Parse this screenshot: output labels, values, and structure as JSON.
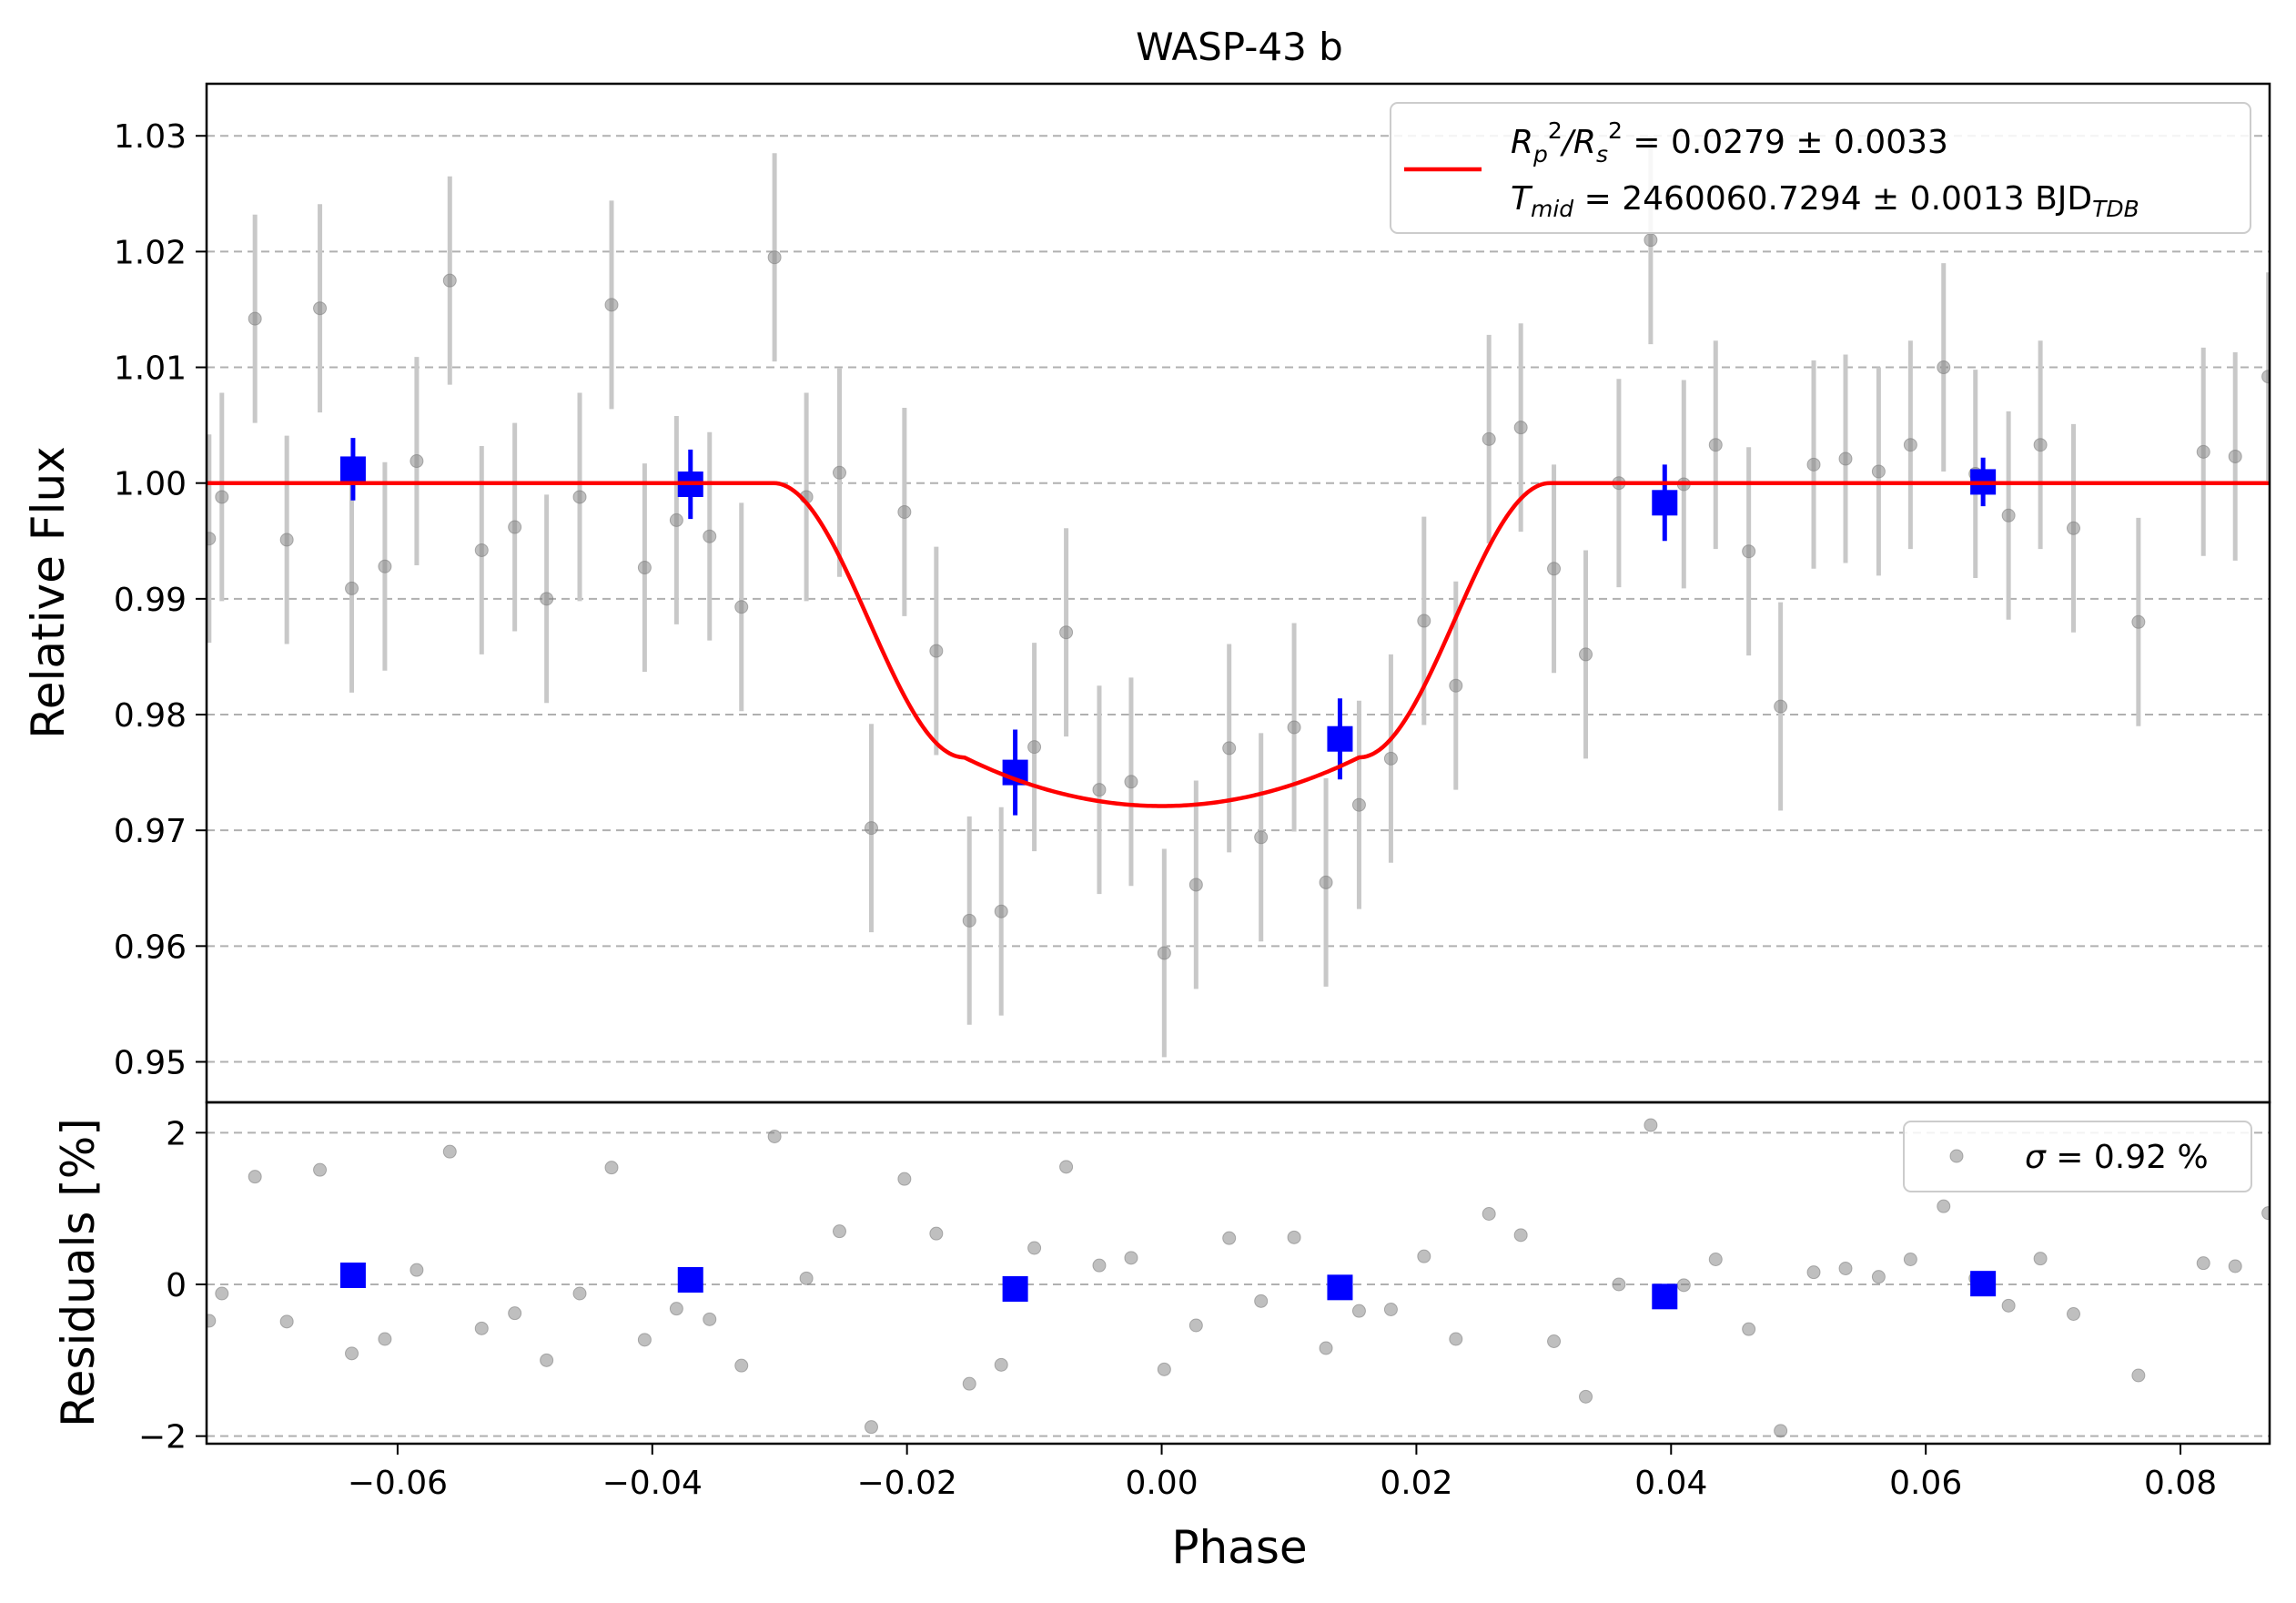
{
  "chart_data": [
    {
      "type": "scatter",
      "panel": "main",
      "title": "WASP-43 b",
      "xlabel": "",
      "ylabel": "Relative Flux",
      "xlim": [
        -0.075,
        0.087
      ],
      "ylim": [
        0.9465,
        1.0345
      ],
      "grid": "y-dashed",
      "yticks": [
        0.95,
        0.96,
        0.97,
        0.98,
        0.99,
        1.0,
        1.01,
        1.02,
        1.03
      ],
      "ytick_labels": [
        "0.95",
        "0.96",
        "0.97",
        "0.98",
        "0.99",
        "1.00",
        "1.01",
        "1.02",
        "1.03"
      ],
      "legend": {
        "placement": "top-right",
        "line1_a": "R",
        "line1_b": "p",
        "line1_c": "2",
        "line1_d": "/R",
        "line1_e": "s",
        "line1_f": "2",
        "line1_g": " = 0.0279 ± 0.0033",
        "line2_a": "T",
        "line2_b": "mid",
        "line2_c": " = 2460060.7294 ± 0.0013 BJD",
        "line2_d": "TDB"
      },
      "raw_err": 0.009,
      "raw_points": [
        [
          -0.0748,
          0.9952
        ],
        [
          -0.0738,
          0.9988
        ],
        [
          -0.0712,
          1.0142
        ],
        [
          -0.0687,
          0.9951
        ],
        [
          -0.0661,
          1.0151
        ],
        [
          -0.0636,
          0.9909
        ],
        [
          -0.061,
          0.9928
        ],
        [
          -0.0585,
          1.0019
        ],
        [
          -0.0559,
          1.0175
        ],
        [
          -0.0534,
          0.9942
        ],
        [
          -0.0508,
          0.9962
        ],
        [
          -0.0483,
          0.99
        ],
        [
          -0.0457,
          0.9988
        ],
        [
          -0.0432,
          1.0154
        ],
        [
          -0.0406,
          0.9927
        ],
        [
          -0.0381,
          0.9968
        ],
        [
          -0.0355,
          0.9954
        ],
        [
          -0.033,
          0.9893
        ],
        [
          -0.0304,
          1.0195
        ],
        [
          -0.0279,
          0.9988
        ],
        [
          -0.0253,
          1.0009
        ],
        [
          -0.0228,
          0.9702
        ],
        [
          -0.0202,
          0.9975
        ],
        [
          -0.0177,
          0.9855
        ],
        [
          -0.0151,
          0.9622
        ],
        [
          -0.0126,
          0.963
        ],
        [
          -0.01,
          0.9772
        ],
        [
          -0.0075,
          0.9871
        ],
        [
          -0.0049,
          0.9735
        ],
        [
          -0.0024,
          0.9742
        ],
        [
          0.0002,
          0.9594
        ],
        [
          0.0027,
          0.9653
        ],
        [
          0.0053,
          0.9771
        ],
        [
          0.0078,
          0.9694
        ],
        [
          0.0104,
          0.9789
        ],
        [
          0.0129,
          0.9655
        ],
        [
          0.0155,
          0.9722
        ],
        [
          0.018,
          0.9762
        ],
        [
          0.0206,
          0.9881
        ],
        [
          0.0231,
          0.9825
        ],
        [
          0.0257,
          1.0038
        ],
        [
          0.0282,
          1.0048
        ],
        [
          0.0308,
          0.9926
        ],
        [
          0.0333,
          0.9852
        ],
        [
          0.0359,
          1.0
        ],
        [
          0.0384,
          1.021
        ],
        [
          0.041,
          0.9999
        ],
        [
          0.0435,
          1.0033
        ],
        [
          0.0461,
          0.9941
        ],
        [
          0.0486,
          0.9807
        ],
        [
          0.0512,
          1.0016
        ],
        [
          0.0537,
          1.0021
        ],
        [
          0.0563,
          1.001
        ],
        [
          0.0588,
          1.0033
        ],
        [
          0.0614,
          1.01
        ],
        [
          0.0639,
          1.0008
        ],
        [
          0.0665,
          0.9972
        ],
        [
          0.069,
          1.0033
        ],
        [
          0.0716,
          0.9961
        ],
        [
          0.0767,
          0.988
        ],
        [
          0.0818,
          1.0027
        ],
        [
          0.0843,
          1.0023
        ],
        [
          0.0869,
          1.0092
        ]
      ],
      "binned_points": [
        [
          -0.0635,
          1.0012,
          0.0027
        ],
        [
          -0.037,
          0.9999,
          0.003
        ],
        [
          -0.0115,
          0.975,
          0.0037
        ],
        [
          0.014,
          0.9779,
          0.0035
        ],
        [
          0.0395,
          0.9983,
          0.0033
        ],
        [
          0.0645,
          1.0001,
          0.0021
        ]
      ],
      "model": {
        "name": "transit model",
        "color": "#ff0000",
        "depth": 0.0279,
        "t1": -0.0305,
        "t2": -0.0155,
        "t3": 0.0155,
        "t4": 0.0305,
        "limb_curvature": 0.0042
      },
      "colors": {
        "raw": "#808080",
        "raw_err": "#c8c8c8",
        "binned": "#0000ff"
      }
    },
    {
      "type": "scatter",
      "panel": "residuals",
      "xlabel": "Phase",
      "ylabel": "Residuals [%]",
      "xlim": [
        -0.075,
        0.087
      ],
      "ylim": [
        -2.1,
        2.4
      ],
      "grid": "y-dashed",
      "yticks": [
        -2,
        0,
        2
      ],
      "ytick_labels": [
        "−2",
        "0",
        "2"
      ],
      "xticks": [
        -0.06,
        -0.04,
        -0.02,
        0.0,
        0.02,
        0.04,
        0.06,
        0.08
      ],
      "xtick_labels": [
        "−0.06",
        "−0.04",
        "−0.02",
        "0.00",
        "0.02",
        "0.04",
        "0.06",
        "0.08"
      ],
      "legend": {
        "placement": "top-right",
        "sigma_symbol": "σ",
        "label": " = 0.92 %"
      },
      "raw_points": [
        [
          -0.0748,
          -0.48
        ],
        [
          -0.0738,
          -0.12
        ],
        [
          -0.0712,
          1.42
        ],
        [
          -0.0687,
          -0.49
        ],
        [
          -0.0661,
          1.51
        ],
        [
          -0.0636,
          -0.91
        ],
        [
          -0.061,
          -0.72
        ],
        [
          -0.0585,
          0.19
        ],
        [
          -0.0559,
          1.75
        ],
        [
          -0.0534,
          -0.58
        ],
        [
          -0.0508,
          -0.38
        ],
        [
          -0.0483,
          -1.0
        ],
        [
          -0.0457,
          -0.12
        ],
        [
          -0.0432,
          1.54
        ],
        [
          -0.0406,
          -0.73
        ],
        [
          -0.0381,
          -0.32
        ],
        [
          -0.0355,
          -0.46
        ],
        [
          -0.033,
          -1.07
        ],
        [
          -0.0304,
          1.95
        ],
        [
          -0.0279,
          0.08
        ],
        [
          -0.0253,
          0.7
        ],
        [
          -0.0228,
          -1.88
        ],
        [
          -0.0202,
          1.39
        ],
        [
          -0.0177,
          0.67
        ],
        [
          -0.0151,
          -1.31
        ],
        [
          -0.0126,
          -1.06
        ],
        [
          -0.01,
          0.48
        ],
        [
          -0.0075,
          1.55
        ],
        [
          -0.0049,
          0.25
        ],
        [
          -0.0024,
          0.35
        ],
        [
          0.0002,
          -1.12
        ],
        [
          0.0027,
          -0.54
        ],
        [
          0.0053,
          0.61
        ],
        [
          0.0078,
          -0.22
        ],
        [
          0.0104,
          0.62
        ],
        [
          0.0129,
          -0.84
        ],
        [
          0.0155,
          -0.35
        ],
        [
          0.018,
          -0.33
        ],
        [
          0.0206,
          0.37
        ],
        [
          0.0231,
          -0.72
        ],
        [
          0.0257,
          0.93
        ],
        [
          0.0282,
          0.65
        ],
        [
          0.0308,
          -0.75
        ],
        [
          0.0333,
          -1.48
        ],
        [
          0.0359,
          0.0
        ],
        [
          0.0384,
          2.1
        ],
        [
          0.041,
          -0.01
        ],
        [
          0.0435,
          0.33
        ],
        [
          0.0461,
          -0.59
        ],
        [
          0.0486,
          -1.93
        ],
        [
          0.0512,
          0.16
        ],
        [
          0.0537,
          0.21
        ],
        [
          0.0563,
          0.1
        ],
        [
          0.0588,
          0.33
        ],
        [
          0.0614,
          1.03
        ],
        [
          0.0639,
          0.08
        ],
        [
          0.0665,
          -0.28
        ],
        [
          0.069,
          0.34
        ],
        [
          0.0716,
          -0.39
        ],
        [
          0.0767,
          -1.2
        ],
        [
          0.0818,
          0.28
        ],
        [
          0.0843,
          0.24
        ],
        [
          0.0869,
          0.94
        ]
      ],
      "binned_points": [
        [
          -0.0635,
          0.12
        ],
        [
          -0.037,
          0.06
        ],
        [
          -0.0115,
          -0.06
        ],
        [
          0.014,
          -0.04
        ],
        [
          0.0395,
          -0.16
        ],
        [
          0.0645,
          0.01
        ]
      ]
    }
  ]
}
